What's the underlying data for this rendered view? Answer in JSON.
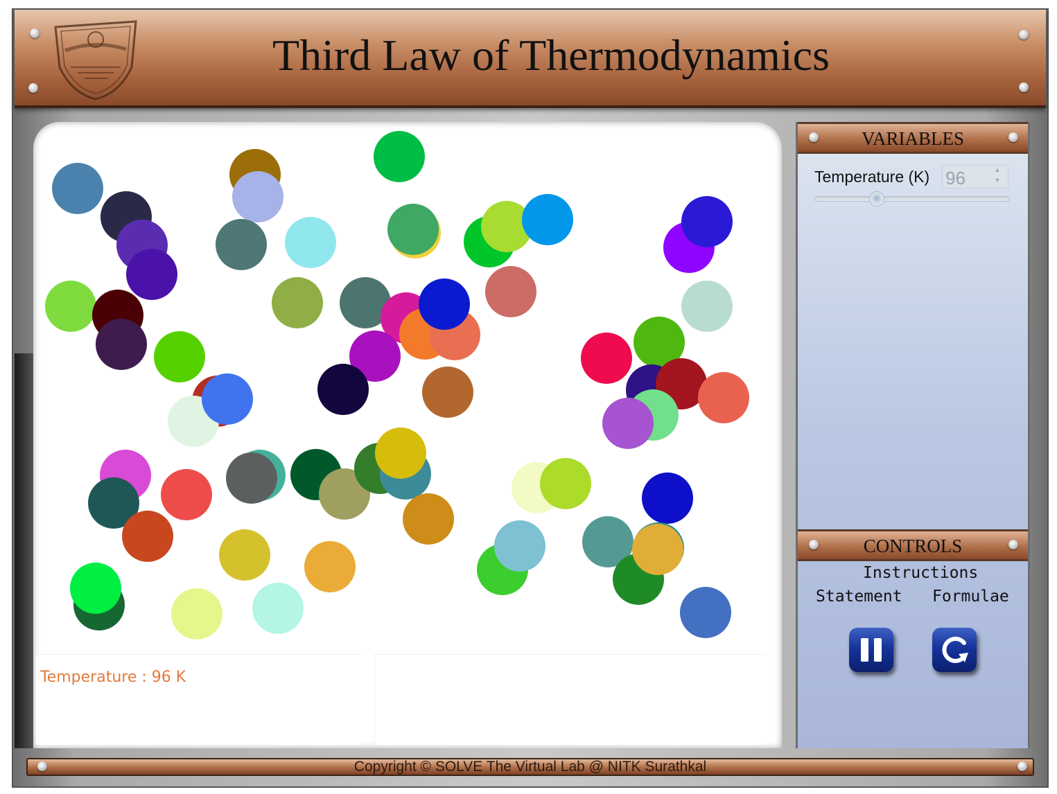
{
  "header": {
    "title": "Third Law of Thermodynamics"
  },
  "variables": {
    "heading": "VARIABLES",
    "temperature_label": "Temperature (K)",
    "temperature_value": "96",
    "temperature_level": 0.32
  },
  "controls": {
    "heading": "CONTROLS",
    "instructions": "Instructions",
    "statement": "Statement",
    "formulae": "Formulae"
  },
  "readout": {
    "temperature_text": "Temperature : 96 K"
  },
  "footer": {
    "copyright": "Copyright © SOLVE The Virtual Lab @ NITK Surathkal"
  },
  "icons": {
    "pause": "pause-icon",
    "reset": "reset-icon",
    "logo": "nitk-logo-icon"
  },
  "particle_colors": [
    "#4a82ad",
    "#9b6e0a",
    "#00bd45",
    "#2a2a48",
    "#a7b2e8",
    "#5a2db0",
    "#4b12a9",
    "#4e7775",
    "#90e7ee",
    "#f2d03a",
    "#3ea864",
    "#00c62a",
    "#a8dc30",
    "#0397ea",
    "#8f05ff",
    "#2a1ad6",
    "#7fdb3e",
    "#4b0005",
    "#3e1c4e",
    "#8fae45",
    "#4d7570",
    "#d61a9c",
    "#f37a2b",
    "#e96f52",
    "#0a1bcf",
    "#cc6c67",
    "#b9dcd2",
    "#4fb810",
    "#ee0b4e",
    "#a911bf",
    "#56d100",
    "#12063d",
    "#b2672f",
    "#2e1286",
    "#a3151f",
    "#72df8c",
    "#a654d1",
    "#b2301f",
    "#e9624f",
    "#dff4e3",
    "#4074ef",
    "#d94ad7",
    "#1f5757",
    "#45b19c",
    "#5c5f60",
    "#01592b",
    "#9f9f60",
    "#337d2b",
    "#3b8b98",
    "#d6bd0c",
    "#ec4d4b",
    "#c8471f",
    "#ce8d19",
    "#f3fac3",
    "#acdb2a",
    "#0e0fc8",
    "#176733",
    "#01ef42",
    "#d5c12c",
    "#eaac37",
    "#e6f68c",
    "#b5f5e5",
    "#3ccd2f",
    "#7dc1d3",
    "#559a92",
    "#1f8b27",
    "#2a8c8f",
    "#e0ad36",
    "#4470c1"
  ]
}
